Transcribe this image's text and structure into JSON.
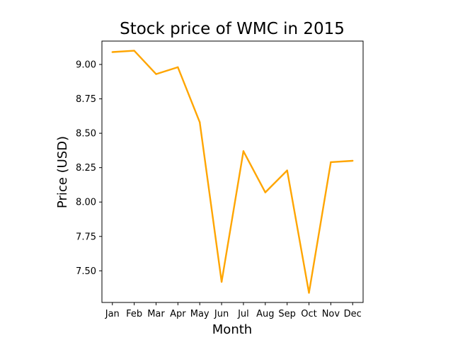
{
  "chart_data": {
    "type": "line",
    "title": "Stock price of WMC in 2015",
    "xlabel": "Month",
    "ylabel": "Price (USD)",
    "categories": [
      "Jan",
      "Feb",
      "Mar",
      "Apr",
      "May",
      "Jun",
      "Jul",
      "Aug",
      "Sep",
      "Oct",
      "Nov",
      "Dec"
    ],
    "series": [
      {
        "values": [
          9.09,
          9.1,
          8.93,
          8.98,
          8.58,
          7.42,
          8.37,
          8.07,
          8.23,
          7.34,
          8.29,
          8.3
        ],
        "color": "#FFA500"
      }
    ],
    "ylim": [
      7.27,
      9.17
    ],
    "yticks": [
      7.5,
      7.75,
      8.0,
      8.25,
      8.5,
      8.75,
      9.0
    ],
    "ytick_labels": [
      "7.50",
      "7.75",
      "8.00",
      "8.25",
      "8.50",
      "8.75",
      "9.00"
    ],
    "grid": false,
    "legend": "none"
  }
}
